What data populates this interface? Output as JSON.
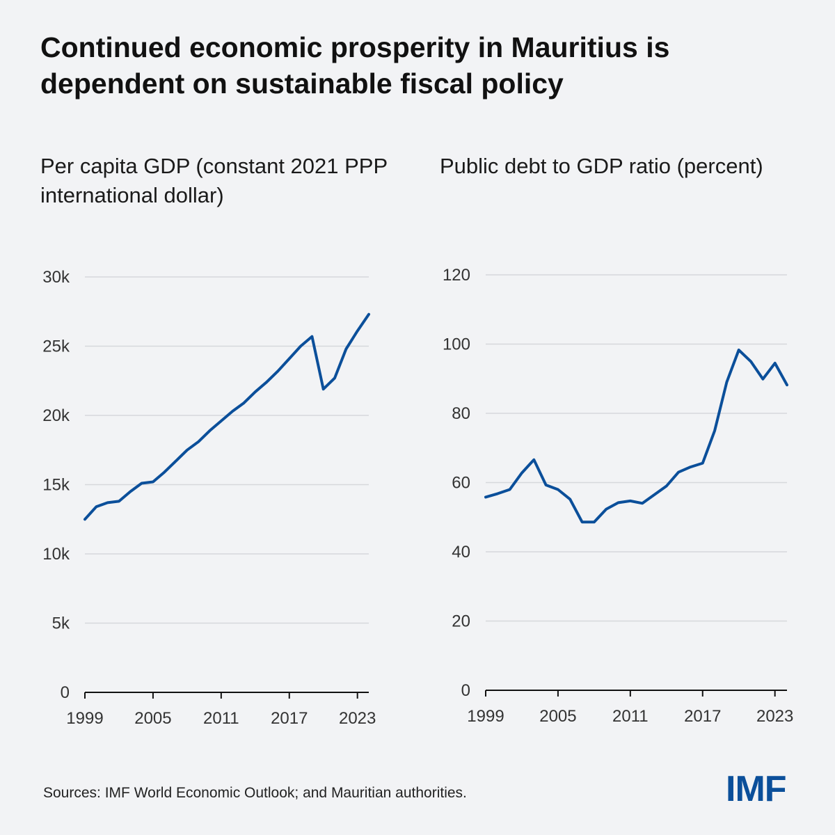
{
  "title": "Continued economic prosperity in Mauritius is dependent on sustainable fiscal policy",
  "source": "Sources: IMF World Economic Outlook; and Mauritian authorities.",
  "logo": "IMF",
  "colors": {
    "line": "#0b4f9a",
    "grid": "#d6d8dc",
    "background": "#f2f3f5"
  },
  "chart_data": [
    {
      "type": "line",
      "title": "Per capita GDP (constant 2021 PPP international dollar)",
      "xlim": [
        1999,
        2024
      ],
      "ylim": [
        0,
        30000
      ],
      "yticks": [
        0,
        5000,
        10000,
        15000,
        20000,
        25000,
        30000
      ],
      "ytick_labels": [
        "0",
        "5k",
        "10k",
        "15k",
        "20k",
        "25k",
        "30k"
      ],
      "xticks": [
        1999,
        2005,
        2011,
        2017,
        2023
      ],
      "xtick_labels": [
        "1999",
        "2005",
        "2011",
        "2017",
        "2023"
      ],
      "grid": true,
      "x": [
        1999,
        2000,
        2001,
        2002,
        2003,
        2004,
        2005,
        2006,
        2007,
        2008,
        2009,
        2010,
        2011,
        2012,
        2013,
        2014,
        2015,
        2016,
        2017,
        2018,
        2019,
        2020,
        2021,
        2022,
        2023,
        2024
      ],
      "series": [
        {
          "values": [
            12500,
            13400,
            13700,
            13800,
            14500,
            15100,
            15200,
            15900,
            16700,
            17500,
            18100,
            18900,
            19600,
            20300,
            20900,
            21700,
            22400,
            23200,
            24100,
            25000,
            25700,
            21900,
            22700,
            24800,
            26100,
            27300
          ]
        }
      ]
    },
    {
      "type": "line",
      "title": "Public debt to GDP ratio (percent)",
      "xlim": [
        1999,
        2024
      ],
      "ylim": [
        0,
        120
      ],
      "yticks": [
        0,
        20,
        40,
        60,
        80,
        100,
        120
      ],
      "ytick_labels": [
        "0",
        "20",
        "40",
        "60",
        "80",
        "100",
        "120"
      ],
      "xticks": [
        1999,
        2005,
        2011,
        2017,
        2023
      ],
      "xtick_labels": [
        "1999",
        "2005",
        "2011",
        "2017",
        "2023"
      ],
      "grid": true,
      "x": [
        1999,
        2000,
        2001,
        2002,
        2003,
        2004,
        2005,
        2006,
        2007,
        2008,
        2009,
        2010,
        2011,
        2012,
        2013,
        2014,
        2015,
        2016,
        2017,
        2018,
        2019,
        2020,
        2021,
        2022,
        2023,
        2024
      ],
      "series": [
        {
          "values": [
            55.8,
            56.8,
            58.0,
            62.8,
            66.6,
            59.3,
            58.0,
            55.2,
            48.6,
            48.6,
            52.3,
            54.2,
            54.7,
            54.0,
            56.5,
            59.0,
            63.0,
            64.5,
            65.6,
            75.0,
            89.0,
            98.3,
            95.0,
            89.9,
            94.5,
            88.2
          ]
        }
      ]
    }
  ]
}
